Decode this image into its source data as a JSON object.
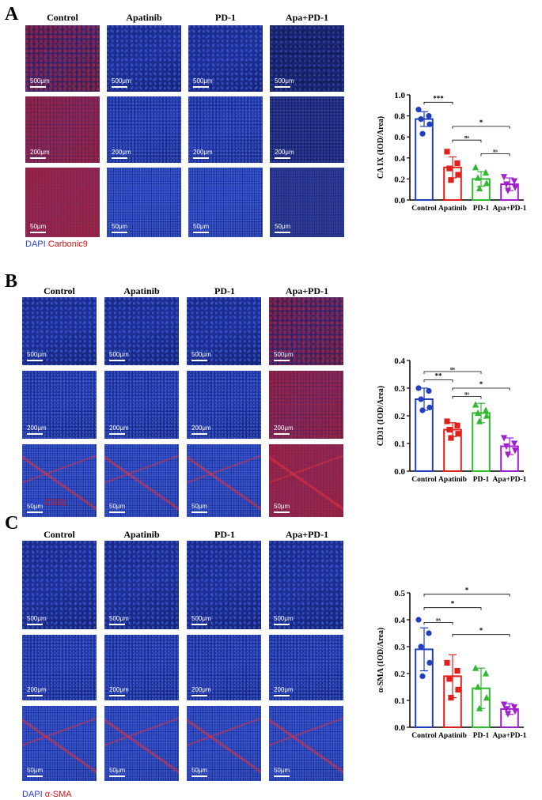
{
  "panels": [
    {
      "letter": "A",
      "columns": [
        "Control",
        "Apatinib",
        "PD-1",
        "Apa+PD-1"
      ],
      "scale_bars": [
        "500μm",
        "200μm",
        "50μm"
      ],
      "legend": {
        "dapi": "DAPI",
        "marker": "Carbonic9"
      },
      "texture": [
        "red",
        "blue",
        "blue",
        "dark"
      ],
      "colors": {
        "dapi": "#2b3fd8",
        "marker": "#e01010",
        "tissue": "#16215a"
      }
    },
    {
      "letter": "B",
      "columns": [
        "Control",
        "Apatinib",
        "PD-1",
        "Apa+PD-1"
      ],
      "scale_bars": [
        "500μm",
        "200μm",
        "50μm"
      ],
      "legend": {
        "dapi": "DAPI",
        "marker": "CD31"
      },
      "texture": [
        "blue",
        "blue",
        "blue",
        "red"
      ],
      "colors": {
        "dapi": "#2b3fd8",
        "marker": "#e01010",
        "tissue": "#16215a"
      }
    },
    {
      "letter": "C",
      "columns": [
        "Control",
        "Apatinib",
        "PD-1",
        "Apa+PD-1"
      ],
      "scale_bars": [
        "500μm",
        "200μm",
        "50μm"
      ],
      "legend": {
        "dapi": "DAPI",
        "marker": "α-SMA"
      },
      "texture": [
        "blue",
        "blue",
        "blue",
        "blue"
      ],
      "colors": {
        "dapi": "#2b3fd8",
        "marker": "#e01010",
        "tissue": "#16215a"
      }
    }
  ],
  "chart_data": [
    {
      "type": "bar",
      "ylabel": "CA IX (IOD/Area)",
      "categories": [
        "Control",
        "Apatinib",
        "PD-1",
        "Apa+PD-1"
      ],
      "colors": [
        "#1f3fbf",
        "#e0201c",
        "#2fb830",
        "#a020d0"
      ],
      "markers": [
        "circle",
        "square",
        "triangle-up",
        "triangle-down"
      ],
      "values": [
        0.77,
        0.31,
        0.2,
        0.15
      ],
      "errors": [
        0.07,
        0.1,
        0.07,
        0.06
      ],
      "points": [
        [
          0.86,
          0.8,
          0.77,
          0.72,
          0.63
        ],
        [
          0.46,
          0.35,
          0.3,
          0.24,
          0.19
        ],
        [
          0.31,
          0.26,
          0.21,
          0.16,
          0.11
        ],
        [
          0.22,
          0.18,
          0.15,
          0.12,
          0.09
        ]
      ],
      "ylim": [
        0,
        1.0
      ],
      "yticks": [
        "0.0",
        "0.2",
        "0.4",
        "0.6",
        "0.8",
        "1.0"
      ],
      "significance": [
        {
          "from": 0,
          "to": 1,
          "label": "***",
          "y": 0.93
        },
        {
          "from": 1,
          "to": 3,
          "label": "*",
          "y": 0.7
        },
        {
          "from": 1,
          "to": 2,
          "label": "ns",
          "y": 0.57
        },
        {
          "from": 2,
          "to": 3,
          "label": "ns",
          "y": 0.44
        }
      ]
    },
    {
      "type": "bar",
      "ylabel": "CD31 (IOD/Area)",
      "categories": [
        "Control",
        "Apatinib",
        "PD-1",
        "Apa+PD-1"
      ],
      "colors": [
        "#1f3fbf",
        "#e0201c",
        "#2fb830",
        "#a020d0"
      ],
      "markers": [
        "circle",
        "square",
        "triangle-up",
        "triangle-down"
      ],
      "values": [
        0.26,
        0.15,
        0.21,
        0.09
      ],
      "errors": [
        0.04,
        0.025,
        0.035,
        0.03
      ],
      "points": [
        [
          0.3,
          0.29,
          0.26,
          0.23,
          0.22
        ],
        [
          0.18,
          0.165,
          0.15,
          0.135,
          0.12
        ],
        [
          0.24,
          0.22,
          0.21,
          0.2,
          0.18
        ],
        [
          0.12,
          0.1,
          0.09,
          0.075,
          0.06
        ]
      ],
      "ylim": [
        0,
        0.4
      ],
      "yticks": [
        "0.0",
        "0.1",
        "0.2",
        "0.3",
        "0.4"
      ],
      "significance": [
        {
          "from": 0,
          "to": 2,
          "label": "ns",
          "y": 0.36
        },
        {
          "from": 0,
          "to": 1,
          "label": "**",
          "y": 0.33
        },
        {
          "from": 1,
          "to": 3,
          "label": "*",
          "y": 0.3
        },
        {
          "from": 1,
          "to": 2,
          "label": "ns",
          "y": 0.27
        }
      ]
    },
    {
      "type": "bar",
      "ylabel": "α-SMA (IOD/Area)",
      "categories": [
        "Control",
        "Apatinib",
        "PD-1",
        "Apa+PD-1"
      ],
      "colors": [
        "#1f3fbf",
        "#e0201c",
        "#2fb830",
        "#a020d0"
      ],
      "markers": [
        "circle",
        "square",
        "triangle-up",
        "triangle-down"
      ],
      "values": [
        0.29,
        0.19,
        0.145,
        0.068
      ],
      "errors": [
        0.08,
        0.08,
        0.075,
        0.02
      ],
      "points": [
        [
          0.4,
          0.35,
          0.3,
          0.24,
          0.19
        ],
        [
          0.24,
          0.21,
          0.18,
          0.14,
          0.11
        ],
        [
          0.22,
          0.2,
          0.15,
          0.11,
          0.07
        ],
        [
          0.085,
          0.075,
          0.068,
          0.06,
          0.05
        ]
      ],
      "ylim": [
        0,
        0.5
      ],
      "yticks": [
        "0.0",
        "0.1",
        "0.2",
        "0.3",
        "0.4",
        "0.5"
      ],
      "significance": [
        {
          "from": 0,
          "to": 3,
          "label": "*",
          "y": 0.495
        },
        {
          "from": 0,
          "to": 2,
          "label": "*",
          "y": 0.445
        },
        {
          "from": 0,
          "to": 1,
          "label": "ns",
          "y": 0.39
        },
        {
          "from": 1,
          "to": 3,
          "label": "*",
          "y": 0.345
        }
      ]
    }
  ]
}
